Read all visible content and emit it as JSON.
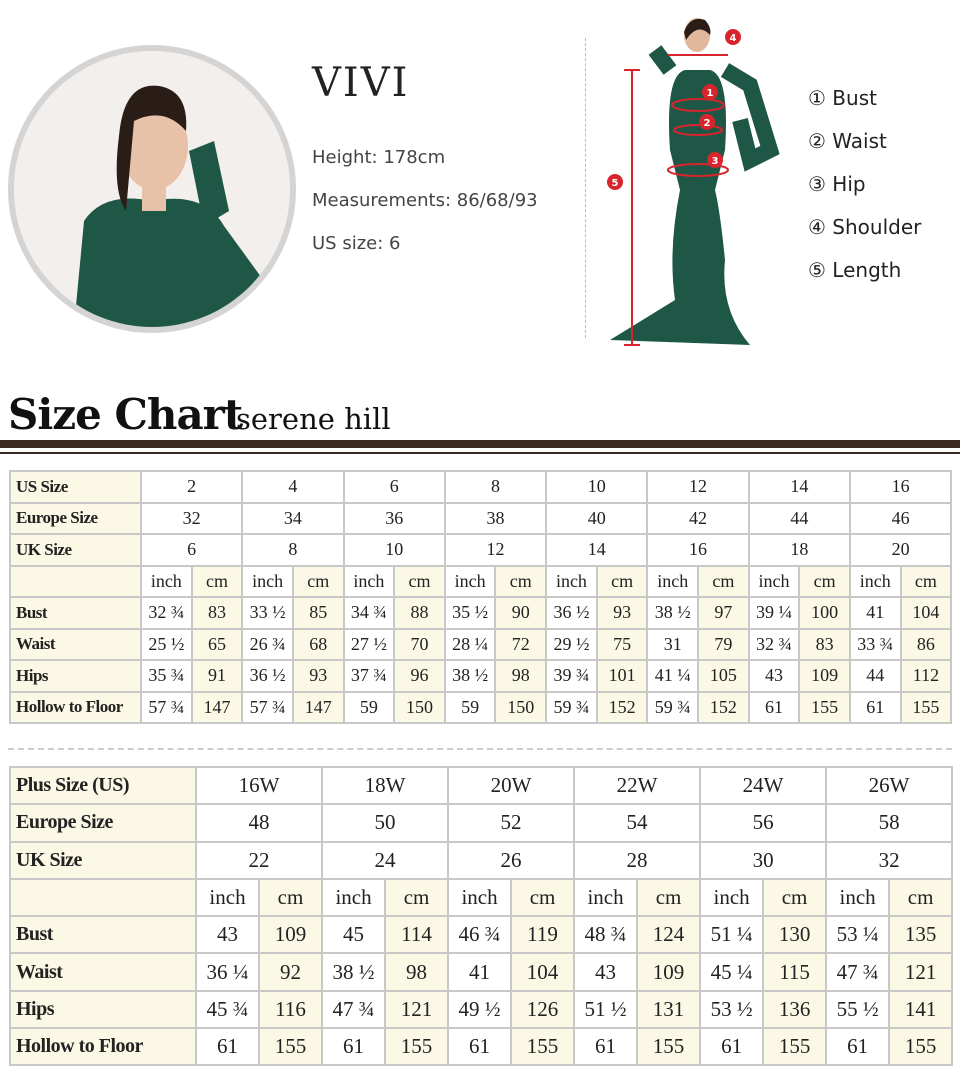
{
  "model": {
    "name": "VIVI",
    "height_label": "Height:",
    "height": "178cm",
    "measurements_label": "Measurements:",
    "measurements": "86/68/93",
    "us_size_label": "US size:",
    "us_size": "6"
  },
  "legend": [
    {
      "num": "①",
      "label": "Bust",
      "marker": "1"
    },
    {
      "num": "②",
      "label": "Waist",
      "marker": "2"
    },
    {
      "num": "③",
      "label": "Hip",
      "marker": "3"
    },
    {
      "num": "④",
      "label": "Shoulder",
      "marker": "4"
    },
    {
      "num": "⑤",
      "label": "Length",
      "marker": "5"
    }
  ],
  "colors": {
    "dress": "#1f5747",
    "marker": "#d8242c",
    "highlight": "#fbf9e6",
    "rule": "#3b2a22"
  },
  "title": "Size Chart",
  "brand": "serene hill",
  "standard_table": {
    "rows_labels": [
      "US Size",
      "Europe Size",
      "UK Size",
      "Bust",
      "Waist",
      "Hips",
      "Hollow to Floor"
    ],
    "us": [
      "2",
      "4",
      "6",
      "8",
      "10",
      "12",
      "14",
      "16"
    ],
    "eu": [
      "32",
      "34",
      "36",
      "38",
      "40",
      "42",
      "44",
      "46"
    ],
    "uk": [
      "6",
      "8",
      "10",
      "12",
      "14",
      "16",
      "18",
      "20"
    ],
    "unit_inch": "inch",
    "unit_cm": "cm",
    "bust": [
      [
        "32 ¾",
        "83"
      ],
      [
        "33 ½",
        "85"
      ],
      [
        "34 ¾",
        "88"
      ],
      [
        "35 ½",
        "90"
      ],
      [
        "36 ½",
        "93"
      ],
      [
        "38 ½",
        "97"
      ],
      [
        "39 ¼",
        "100"
      ],
      [
        "41",
        "104"
      ]
    ],
    "waist": [
      [
        "25 ½",
        "65"
      ],
      [
        "26 ¾",
        "68"
      ],
      [
        "27 ½",
        "70"
      ],
      [
        "28 ¼",
        "72"
      ],
      [
        "29 ½",
        "75"
      ],
      [
        "31",
        "79"
      ],
      [
        "32 ¾",
        "83"
      ],
      [
        "33 ¾",
        "86"
      ]
    ],
    "hips": [
      [
        "35 ¾",
        "91"
      ],
      [
        "36 ½",
        "93"
      ],
      [
        "37 ¾",
        "96"
      ],
      [
        "38 ½",
        "98"
      ],
      [
        "39 ¾",
        "101"
      ],
      [
        "41 ¼",
        "105"
      ],
      [
        "43",
        "109"
      ],
      [
        "44",
        "112"
      ]
    ],
    "hollow": [
      [
        "57 ¾",
        "147"
      ],
      [
        "57 ¾",
        "147"
      ],
      [
        "59",
        "150"
      ],
      [
        "59",
        "150"
      ],
      [
        "59 ¾",
        "152"
      ],
      [
        "59 ¾",
        "152"
      ],
      [
        "61",
        "155"
      ],
      [
        "61",
        "155"
      ]
    ]
  },
  "plus_table": {
    "rows_labels": [
      "Plus Size (US)",
      "Europe Size",
      "UK Size",
      "Bust",
      "Waist",
      "Hips",
      "Hollow to Floor"
    ],
    "us": [
      "16W",
      "18W",
      "20W",
      "22W",
      "24W",
      "26W"
    ],
    "eu": [
      "48",
      "50",
      "52",
      "54",
      "56",
      "58"
    ],
    "uk": [
      "22",
      "24",
      "26",
      "28",
      "30",
      "32"
    ],
    "unit_inch": "inch",
    "unit_cm": "cm",
    "bust": [
      [
        "43",
        "109"
      ],
      [
        "45",
        "114"
      ],
      [
        "46 ¾",
        "119"
      ],
      [
        "48 ¾",
        "124"
      ],
      [
        "51 ¼",
        "130"
      ],
      [
        "53 ¼",
        "135"
      ]
    ],
    "waist": [
      [
        "36 ¼",
        "92"
      ],
      [
        "38 ½",
        "98"
      ],
      [
        "41",
        "104"
      ],
      [
        "43",
        "109"
      ],
      [
        "45 ¼",
        "115"
      ],
      [
        "47 ¾",
        "121"
      ]
    ],
    "hips": [
      [
        "45 ¾",
        "116"
      ],
      [
        "47 ¾",
        "121"
      ],
      [
        "49 ½",
        "126"
      ],
      [
        "51 ½",
        "131"
      ],
      [
        "53 ½",
        "136"
      ],
      [
        "55 ½",
        "141"
      ]
    ],
    "hollow": [
      [
        "61",
        "155"
      ],
      [
        "61",
        "155"
      ],
      [
        "61",
        "155"
      ],
      [
        "61",
        "155"
      ],
      [
        "61",
        "155"
      ],
      [
        "61",
        "155"
      ]
    ]
  }
}
